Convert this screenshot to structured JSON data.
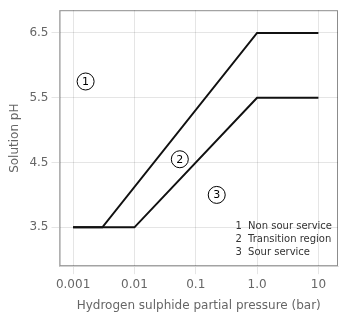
{
  "chart_data": {
    "type": "line",
    "xlabel": "Hydrogen sulphide partial pressure (bar)",
    "ylabel": "Solution pH",
    "log": "x",
    "grid": true,
    "xlim": [
      0.0006025595860743578,
      20.892961308540396
    ],
    "xticks": [
      0.001,
      0.01,
      0.1,
      {
        "value": 1,
        "label": "1.0"
      },
      10
    ],
    "ylim": [
      2.9,
      6.85
    ],
    "yticks": [
      3.5,
      4.5,
      5.5,
      6.5
    ],
    "series": [
      {
        "x": [
          0.001,
          0.003,
          1.0,
          10
        ],
        "values": [
          3.5,
          3.5,
          6.5,
          6.5
        ],
        "color": "#111111"
      },
      {
        "x": [
          0.001,
          0.01,
          1.0,
          10
        ],
        "values": [
          3.5,
          3.5,
          5.5,
          5.5
        ],
        "color": "#111111"
      }
    ],
    "annotations": [
      {
        "text": "1",
        "x": 0.0016,
        "y": 5.75
      },
      {
        "text": "2",
        "x": 0.055,
        "y": 4.55
      },
      {
        "text": "3",
        "x": 0.22,
        "y": 4.0
      },
      {
        "text": "1  Non sour service"
      },
      {
        "text": "2  Transition region"
      },
      {
        "text": "3  Sour service"
      }
    ]
  }
}
